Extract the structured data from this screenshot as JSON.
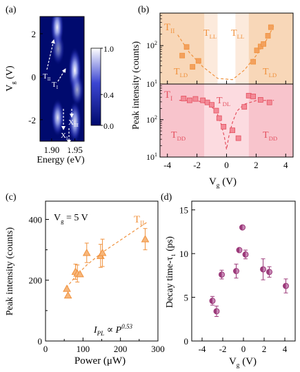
{
  "chart_data": [
    {
      "panel": "(a)",
      "type": "heatmap",
      "xlabel": "Energy (eV)",
      "ylabel": "V",
      "ylabel_sub": "g",
      "ylabel_unit": "(V)",
      "xlim": [
        1.875,
        1.97
      ],
      "ylim": [
        -3.0,
        2.8
      ],
      "xticks": [
        1.9,
        1.95
      ],
      "xtick_labels": [
        "1.90",
        "1.95"
      ],
      "yticks": [
        2,
        0,
        -2
      ],
      "ytick_labels": [
        "2",
        "0",
        "-2"
      ],
      "colorbar": {
        "ticks": [
          1.0,
          0.4,
          0.0
        ],
        "tick_labels": [
          "1.0",
          "0.4",
          "0.0"
        ],
        "colors": [
          "#000a6e",
          "#3c46d2",
          "#ffffff"
        ]
      },
      "blobs": [
        {
          "energy": 1.912,
          "vg": 2.3,
          "sx": 0.006,
          "sy": 0.45,
          "a": 0.95
        },
        {
          "energy": 1.914,
          "vg": 1.3,
          "sx": 0.006,
          "sy": 0.35,
          "a": 0.55
        },
        {
          "energy": 1.95,
          "vg": 0.3,
          "sx": 0.006,
          "sy": 0.5,
          "a": 1.0
        },
        {
          "energy": 1.955,
          "vg": -0.6,
          "sx": 0.006,
          "sy": 0.35,
          "a": 0.65
        },
        {
          "energy": 1.913,
          "vg": -1.9,
          "sx": 0.006,
          "sy": 0.4,
          "a": 0.9
        },
        {
          "energy": 1.95,
          "vg": -2.1,
          "sx": 0.006,
          "sy": 0.45,
          "a": 0.9
        }
      ],
      "annotations": [
        {
          "label": "T",
          "sub": "II"
        },
        {
          "label": "T",
          "sub": "I"
        },
        {
          "label": "X",
          "sub": "III"
        },
        {
          "label": "X",
          "sub": "I"
        },
        {
          "label": "X",
          "sub": "II"
        }
      ]
    },
    {
      "panel": "(b)",
      "type": "scatter",
      "xlabel": "V",
      "xlabel_sub": "g",
      "xlabel_unit": "(V)",
      "ylabel": "Peak  intensity (counts)",
      "xlim": [
        -4.5,
        4.5
      ],
      "xticks": [
        -4,
        -2,
        0,
        2,
        4
      ],
      "yscale": "log",
      "subplots": [
        {
          "name": "T",
          "name_sub": "II",
          "color": "#f0913c",
          "ylim": [
            10,
            700
          ],
          "yticks": [
            10,
            100
          ],
          "region_labels": [
            {
              "label": "T",
              "sub": "LL"
            },
            {
              "label": "T",
              "sub": "LL"
            },
            {
              "label": "T",
              "sub": "LD"
            },
            {
              "label": "T",
              "sub": "LD"
            }
          ],
          "points": [
            {
              "x": -3.0,
              "y": 55
            },
            {
              "x": -2.7,
              "y": 92
            },
            {
              "x": -2.3,
              "y": 28
            },
            {
              "x": -1.9,
              "y": 40
            },
            {
              "x": 1.8,
              "y": 38
            },
            {
              "x": 2.05,
              "y": 75
            },
            {
              "x": 2.3,
              "y": 95
            },
            {
              "x": 2.5,
              "y": 110
            },
            {
              "x": 2.8,
              "y": 180
            },
            {
              "x": 3.0,
              "y": 300
            }
          ],
          "fit": [
            {
              "x": -3.3,
              "y": 190
            },
            {
              "x": -2.5,
              "y": 65
            },
            {
              "x": -1.6,
              "y": 28
            },
            {
              "x": -0.6,
              "y": 14
            },
            {
              "x": 0.4,
              "y": 13
            },
            {
              "x": 1.2,
              "y": 23
            },
            {
              "x": 2.0,
              "y": 55
            },
            {
              "x": 2.7,
              "y": 140
            },
            {
              "x": 3.2,
              "y": 330
            }
          ]
        },
        {
          "name": "T",
          "name_sub": "I",
          "color": "#e4505f",
          "ylim": [
            10,
            900
          ],
          "yticks": [
            10,
            100
          ],
          "region_labels": [
            {
              "label": "T",
              "sub": "DL"
            },
            {
              "label": "T",
              "sub": "DD"
            },
            {
              "label": "T",
              "sub": "DD"
            }
          ],
          "points": [
            {
              "x": -2.9,
              "y": 370
            },
            {
              "x": -2.5,
              "y": 330
            },
            {
              "x": -2.1,
              "y": 360
            },
            {
              "x": -1.6,
              "y": 330
            },
            {
              "x": -1.3,
              "y": 290
            },
            {
              "x": -1.0,
              "y": 250
            },
            {
              "x": -0.7,
              "y": 175
            },
            {
              "x": -0.5,
              "y": 110
            },
            {
              "x": -0.2,
              "y": 65
            },
            {
              "x": 0.4,
              "y": 52
            },
            {
              "x": 0.8,
              "y": 32
            },
            {
              "x": 1.2,
              "y": 220
            },
            {
              "x": 1.5,
              "y": 440
            },
            {
              "x": 1.8,
              "y": 420
            },
            {
              "x": 2.3,
              "y": 340
            },
            {
              "x": 2.9,
              "y": 290
            }
          ],
          "fit": [
            {
              "x": -3.2,
              "y": 330
            },
            {
              "x": -2.0,
              "y": 325
            },
            {
              "x": -1.2,
              "y": 260
            },
            {
              "x": -0.7,
              "y": 170
            },
            {
              "x": -0.4,
              "y": 85
            },
            {
              "x": -0.15,
              "y": 35
            },
            {
              "x": 0.0,
              "y": 16
            },
            {
              "x": 0.15,
              "y": 35
            },
            {
              "x": 0.4,
              "y": 85
            },
            {
              "x": 0.7,
              "y": 170
            },
            {
              "x": 1.2,
              "y": 260
            },
            {
              "x": 2.0,
              "y": 325
            },
            {
              "x": 3.2,
              "y": 330
            }
          ]
        }
      ]
    },
    {
      "panel": "(c)",
      "type": "scatter",
      "annotation": "V",
      "annotation_sub": "g",
      "annotation_value": "= 5 V",
      "series_name": "T",
      "series_sub": "II",
      "formula_lhs": "I",
      "formula_lhs_sub": "PL",
      "formula_rhs": "∝ P",
      "formula_exp": "0.53",
      "xlabel": "Power (μW)",
      "ylabel": "Peak  intensity (counts)",
      "xlim": [
        0,
        300
      ],
      "ylim": [
        0,
        460
      ],
      "xticks": [
        0,
        100,
        200,
        300
      ],
      "yticks": [
        0,
        200,
        400
      ],
      "color": "#f0913c",
      "points": [
        {
          "x": 57,
          "y": 172,
          "err": 0
        },
        {
          "x": 60,
          "y": 150,
          "err": 0
        },
        {
          "x": 80,
          "y": 228,
          "err": 25
        },
        {
          "x": 85,
          "y": 222,
          "err": 28
        },
        {
          "x": 92,
          "y": 220,
          "err": 0
        },
        {
          "x": 110,
          "y": 290,
          "err": 32
        },
        {
          "x": 147,
          "y": 280,
          "err": 38
        },
        {
          "x": 152,
          "y": 290,
          "err": 45
        },
        {
          "x": 266,
          "y": 335,
          "err": 35
        }
      ],
      "fit": [
        {
          "x": 55,
          "y": 175
        },
        {
          "x": 80,
          "y": 212
        },
        {
          "x": 110,
          "y": 250
        },
        {
          "x": 150,
          "y": 290
        },
        {
          "x": 200,
          "y": 332
        },
        {
          "x": 270,
          "y": 390
        }
      ]
    },
    {
      "panel": "(d)",
      "type": "scatter",
      "xlabel": "V",
      "xlabel_sub": "g",
      "xlabel_unit": "(V)",
      "ylabel": "Decay time-τ",
      "ylabel_sub": "1",
      "ylabel_unit": "(ps)",
      "xlim": [
        -5,
        5
      ],
      "ylim": [
        0,
        16
      ],
      "xticks": [
        -4,
        -2,
        0,
        2,
        4
      ],
      "yticks": [
        0,
        5,
        10,
        15
      ],
      "color": "#9c3a7a",
      "points": [
        {
          "x": -3.0,
          "y": 4.6,
          "err": 0.5
        },
        {
          "x": -2.6,
          "y": 3.4,
          "err": 0.6
        },
        {
          "x": -2.1,
          "y": 7.6,
          "err": 0.5
        },
        {
          "x": -0.7,
          "y": 8.0,
          "err": 0.8
        },
        {
          "x": -0.4,
          "y": 10.4,
          "err": 0
        },
        {
          "x": -0.1,
          "y": 13.0,
          "err": 0
        },
        {
          "x": 0.2,
          "y": 9.9,
          "err": 0.5
        },
        {
          "x": 1.9,
          "y": 8.2,
          "err": 1.2
        },
        {
          "x": 2.5,
          "y": 7.9,
          "err": 0.6
        },
        {
          "x": 4.1,
          "y": 6.3,
          "err": 0.8
        }
      ]
    }
  ]
}
